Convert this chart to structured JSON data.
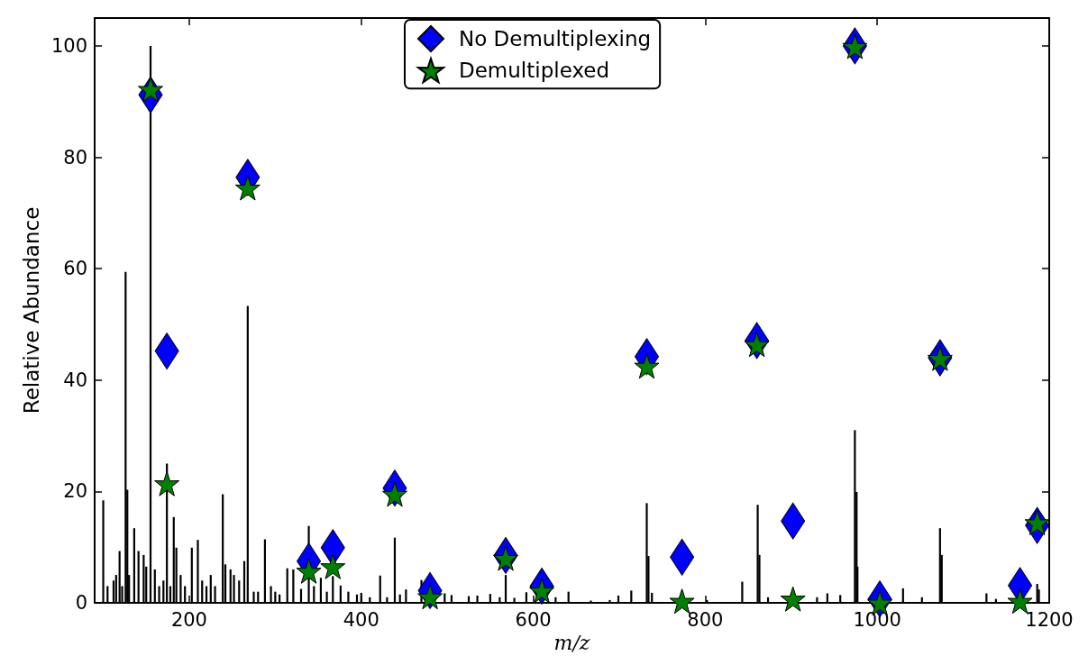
{
  "chart_data": {
    "type": "scatter",
    "xlabel": "m/z",
    "ylabel": "Relative Abundance",
    "xlim": [
      90,
      1200
    ],
    "xticks": [
      200,
      400,
      600,
      800,
      1000,
      1200
    ],
    "ylim": [
      0,
      105
    ],
    "yticks": [
      0,
      20,
      40,
      60,
      80,
      100
    ],
    "grid": false,
    "legend": "top",
    "series": [
      {
        "type": "bar",
        "color": "#000000",
        "x": [
          100,
          105,
          112,
          115,
          119,
          122,
          126,
          128,
          130,
          136,
          141,
          147,
          150,
          155,
          160,
          165,
          170,
          174,
          178,
          182,
          185,
          190,
          195,
          203,
          210,
          215,
          220,
          225,
          230,
          239,
          242,
          248,
          252,
          258,
          264,
          268,
          275,
          280,
          288,
          295,
          300,
          305,
          314,
          321,
          330,
          339,
          345,
          353,
          360,
          367,
          376,
          385,
          395,
          400,
          410,
          422,
          430,
          439,
          445,
          452,
          470,
          497,
          505,
          525,
          535,
          550,
          561,
          568,
          578,
          592,
          626,
          641,
          667,
          689,
          699,
          714,
          732,
          734,
          738,
          802,
          843,
          861,
          863,
          873,
          930,
          942,
          957,
          974,
          976,
          977,
          1030,
          1052,
          1073,
          1075,
          1127,
          1138,
          1186,
          1188
        ],
        "values": [
          18.4,
          3,
          4,
          5,
          9.3,
          3,
          59.4,
          20.3,
          5,
          13.4,
          9.3,
          8.6,
          6.5,
          100,
          6,
          3,
          4,
          25,
          3,
          15.4,
          9.9,
          5,
          3,
          9.9,
          11.3,
          4,
          3,
          5,
          3,
          19.5,
          6.9,
          6,
          5,
          4,
          7.5,
          53.3,
          2,
          2,
          11.4,
          3,
          2,
          1.5,
          6.2,
          6,
          2.5,
          13.8,
          3,
          4.5,
          2,
          4.8,
          3.1,
          2,
          1.5,
          1.8,
          1,
          4.9,
          1,
          11.7,
          1.5,
          2.4,
          4.1,
          1.7,
          1.4,
          1.2,
          1.3,
          1.6,
          1,
          5,
          0.9,
          1.9,
          1,
          2,
          0.4,
          0.5,
          1.3,
          2.2,
          17.9,
          8.4,
          1.8,
          0.5,
          3.8,
          17.6,
          8.6,
          1,
          1,
          1.7,
          1.4,
          31,
          19.9,
          6.5,
          2.6,
          1,
          13.4,
          8.6,
          1.7,
          0.7,
          3.4,
          2.4
        ]
      },
      {
        "name": "No Demultiplexing",
        "color": "#0000ff",
        "marker": "diamond",
        "x": [
          155,
          174,
          268,
          339,
          367,
          439,
          480,
          568,
          610,
          732,
          773,
          860,
          902,
          974,
          1003,
          1073,
          1166,
          1186
        ],
        "values": [
          91.2,
          45.2,
          76.4,
          7.5,
          9.9,
          20.6,
          2.2,
          8.5,
          3,
          44.2,
          8.2,
          47.1,
          14.7,
          100,
          0.7,
          44,
          3.1,
          13.9
        ]
      },
      {
        "name": "Demultiplexed",
        "color": "#008000",
        "marker": "star",
        "x": [
          155,
          174,
          268,
          339,
          367,
          439,
          480,
          568,
          610,
          732,
          773,
          860,
          902,
          974,
          1003,
          1073,
          1166,
          1186
        ],
        "values": [
          92.2,
          21.4,
          74.5,
          5.7,
          6.5,
          19.5,
          1.1,
          8,
          2.2,
          42.5,
          0.3,
          46.4,
          0.7,
          99.9,
          0,
          43.9,
          0.3,
          14.4
        ]
      }
    ]
  }
}
